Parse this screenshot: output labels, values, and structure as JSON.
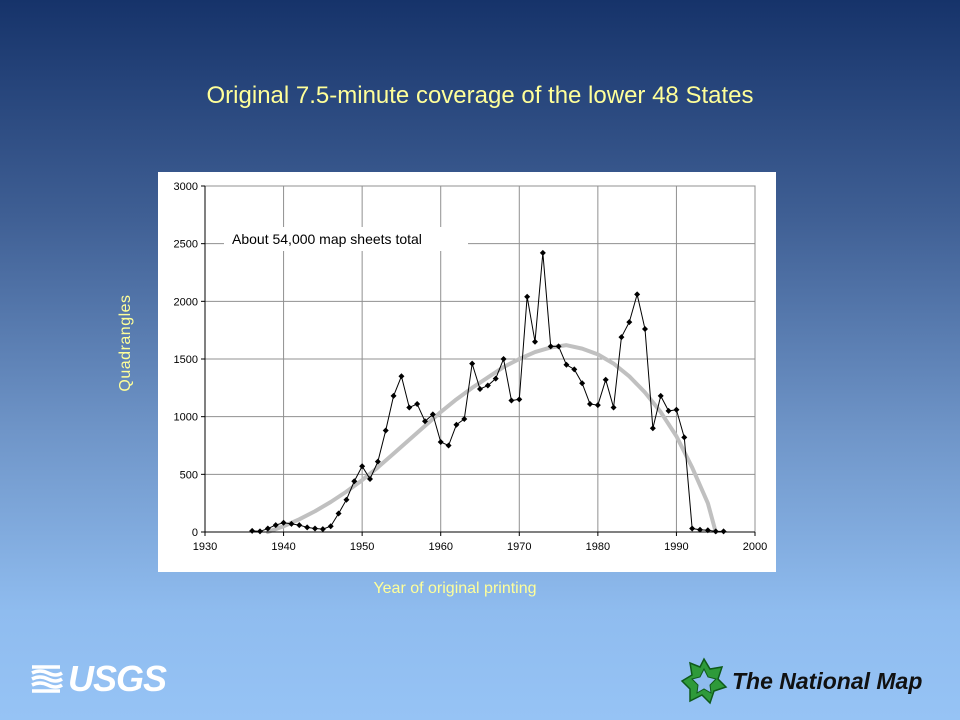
{
  "slide": {
    "title": "Original 7.5-minute coverage of the lower 48 States",
    "y_title": "Quadrangles",
    "x_title": "Year of original printing",
    "title_color": "#ffff99"
  },
  "logos": {
    "usgs": "USGS",
    "national_map": "The National Map"
  },
  "chart_data": {
    "type": "line",
    "title": "",
    "annotation": "About 54,000 map sheets total",
    "xlabel": "Year of original printing",
    "ylabel": "Quadrangles",
    "xlim": [
      1930,
      2000
    ],
    "ylim": [
      0,
      3000
    ],
    "xticks": [
      1930,
      1940,
      1950,
      1960,
      1970,
      1980,
      1990,
      2000
    ],
    "yticks": [
      0,
      500,
      1000,
      1500,
      2000,
      2500,
      3000
    ],
    "grid": true,
    "series": [
      {
        "kind": "data",
        "color": "#000000",
        "marker": "diamond",
        "x": [
          1936,
          1937,
          1938,
          1939,
          1940,
          1941,
          1942,
          1943,
          1944,
          1945,
          1946,
          1947,
          1948,
          1949,
          1950,
          1951,
          1952,
          1953,
          1954,
          1955,
          1956,
          1957,
          1958,
          1959,
          1960,
          1961,
          1962,
          1963,
          1964,
          1965,
          1966,
          1967,
          1968,
          1969,
          1970,
          1971,
          1972,
          1973,
          1974,
          1975,
          1976,
          1977,
          1978,
          1979,
          1980,
          1981,
          1982,
          1983,
          1984,
          1985,
          1986,
          1987,
          1988,
          1989,
          1990,
          1991,
          1992,
          1993,
          1994,
          1995,
          1996
        ],
        "y": [
          10,
          5,
          30,
          60,
          80,
          70,
          60,
          40,
          30,
          25,
          50,
          160,
          280,
          440,
          570,
          460,
          610,
          880,
          1180,
          1350,
          1080,
          1110,
          960,
          1020,
          780,
          750,
          930,
          980,
          1460,
          1240,
          1270,
          1330,
          1500,
          1140,
          1150,
          2040,
          1650,
          2420,
          1610,
          1610,
          1450,
          1410,
          1290,
          1110,
          1100,
          1320,
          1080,
          1690,
          1820,
          2060,
          1760,
          900,
          1180,
          1050,
          1060,
          820,
          30,
          20,
          15,
          5,
          5
        ]
      },
      {
        "kind": "trend",
        "color": "#c0c0c0",
        "x": [
          1938,
          1940,
          1942,
          1944,
          1946,
          1948,
          1950,
          1952,
          1954,
          1956,
          1958,
          1960,
          1962,
          1964,
          1966,
          1968,
          1970,
          1972,
          1974,
          1976,
          1978,
          1980,
          1982,
          1984,
          1986,
          1988,
          1990,
          1992,
          1994,
          1995
        ],
        "y": [
          0,
          50,
          110,
          180,
          260,
          350,
          450,
          560,
          680,
          800,
          920,
          1040,
          1150,
          1250,
          1340,
          1430,
          1500,
          1560,
          1600,
          1620,
          1590,
          1540,
          1460,
          1350,
          1210,
          1040,
          830,
          560,
          250,
          0
        ]
      }
    ]
  }
}
